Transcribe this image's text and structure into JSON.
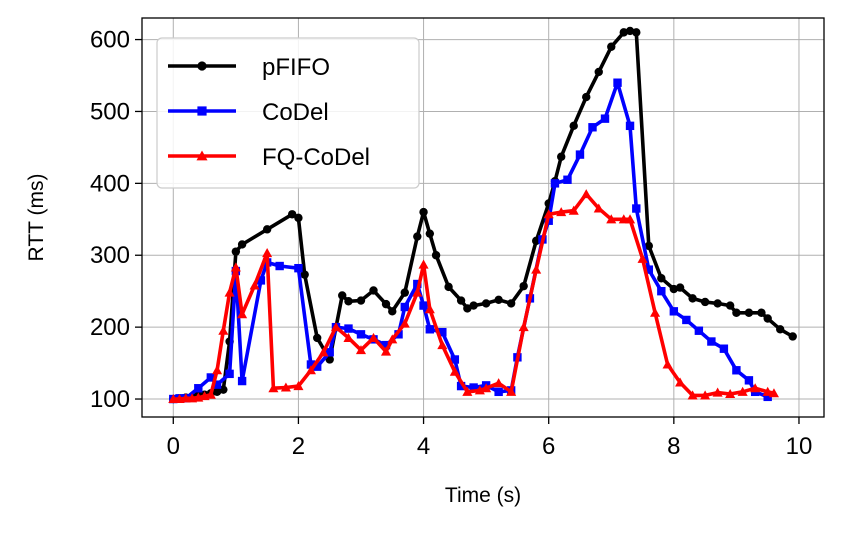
{
  "chart_data": {
    "type": "line",
    "title": "",
    "xlabel": "Time (s)",
    "ylabel": "RTT (ms)",
    "xlim": [
      -0.5,
      10.4
    ],
    "ylim": [
      75,
      630
    ],
    "xticks": [
      0,
      2,
      4,
      6,
      8,
      10
    ],
    "yticks": [
      100,
      200,
      300,
      400,
      500,
      600
    ],
    "grid": true,
    "legend_position": "top-left",
    "series": [
      {
        "name": "pFIFO",
        "color": "#000000",
        "marker": "circle",
        "x": [
          0,
          0.1,
          0.2,
          0.3,
          0.4,
          0.5,
          0.6,
          0.7,
          0.8,
          0.9,
          1.0,
          1.1,
          1.5,
          1.9,
          2.0,
          2.1,
          2.3,
          2.5,
          2.7,
          2.8,
          3.0,
          3.2,
          3.4,
          3.5,
          3.7,
          3.9,
          4.0,
          4.1,
          4.2,
          4.4,
          4.6,
          4.7,
          4.8,
          5.0,
          5.2,
          5.4,
          5.6,
          5.8,
          6.0,
          6.1,
          6.2,
          6.4,
          6.6,
          6.8,
          7.0,
          7.2,
          7.3,
          7.4,
          7.6,
          7.8,
          8.0,
          8.1,
          8.3,
          8.5,
          8.7,
          8.9,
          9.0,
          9.2,
          9.4,
          9.5,
          9.7,
          9.9
        ],
        "y": [
          100,
          101,
          102,
          103,
          105,
          106,
          108,
          110,
          113,
          180,
          305,
          315,
          336,
          357,
          352,
          273,
          185,
          155,
          244,
          236,
          237,
          251,
          232,
          222,
          248,
          326,
          360,
          330,
          300,
          256,
          237,
          226,
          230,
          233,
          238,
          233,
          257,
          320,
          372,
          403,
          437,
          480,
          520,
          555,
          590,
          610,
          612,
          610,
          313,
          268,
          253,
          255,
          240,
          235,
          233,
          230,
          220,
          220,
          220,
          212,
          197,
          187
        ]
      },
      {
        "name": "CoDel",
        "color": "#0000ff",
        "marker": "square",
        "x": [
          0,
          0.1,
          0.2,
          0.4,
          0.6,
          0.7,
          0.9,
          1.0,
          1.1,
          1.4,
          1.5,
          1.7,
          2.0,
          2.2,
          2.3,
          2.5,
          2.6,
          2.8,
          3.0,
          3.2,
          3.4,
          3.6,
          3.7,
          3.9,
          4.0,
          4.1,
          4.3,
          4.5,
          4.6,
          4.8,
          5.0,
          5.2,
          5.4,
          5.5,
          5.7,
          5.9,
          6.0,
          6.1,
          6.3,
          6.5,
          6.7,
          6.9,
          7.1,
          7.3,
          7.4,
          7.6,
          7.8,
          8.0,
          8.2,
          8.4,
          8.6,
          8.8,
          9.0,
          9.2,
          9.3,
          9.5
        ],
        "y": [
          100,
          101,
          101,
          115,
          130,
          120,
          135,
          278,
          125,
          265,
          290,
          285,
          282,
          148,
          145,
          165,
          200,
          198,
          190,
          183,
          175,
          190,
          228,
          260,
          230,
          197,
          193,
          155,
          118,
          116,
          119,
          110,
          112,
          158,
          240,
          322,
          348,
          400,
          405,
          440,
          478,
          490,
          540,
          480,
          365,
          280,
          250,
          222,
          210,
          195,
          180,
          170,
          140,
          126,
          110,
          103
        ]
      },
      {
        "name": "FQ-CoDel",
        "color": "#ff0000",
        "marker": "triangle",
        "x": [
          0,
          0.1,
          0.2,
          0.3,
          0.4,
          0.5,
          0.6,
          0.7,
          0.8,
          0.9,
          1.0,
          1.1,
          1.3,
          1.5,
          1.6,
          1.8,
          2.0,
          2.2,
          2.4,
          2.6,
          2.8,
          3.0,
          3.2,
          3.4,
          3.5,
          3.7,
          3.9,
          4.0,
          4.1,
          4.3,
          4.5,
          4.7,
          4.9,
          5.0,
          5.2,
          5.4,
          5.6,
          5.8,
          6.0,
          6.2,
          6.4,
          6.6,
          6.8,
          7.0,
          7.2,
          7.3,
          7.5,
          7.7,
          7.9,
          8.1,
          8.3,
          8.5,
          8.7,
          8.9,
          9.1,
          9.3,
          9.5,
          9.6
        ],
        "y": [
          100,
          100,
          101,
          101,
          102,
          104,
          106,
          140,
          195,
          248,
          283,
          218,
          258,
          303,
          115,
          116,
          118,
          140,
          165,
          200,
          185,
          168,
          185,
          166,
          183,
          205,
          248,
          287,
          225,
          175,
          138,
          110,
          112,
          115,
          122,
          110,
          200,
          280,
          357,
          360,
          362,
          385,
          365,
          350,
          350,
          350,
          295,
          220,
          148,
          123,
          105,
          105,
          109,
          107,
          110,
          115,
          110,
          108
        ]
      }
    ]
  }
}
